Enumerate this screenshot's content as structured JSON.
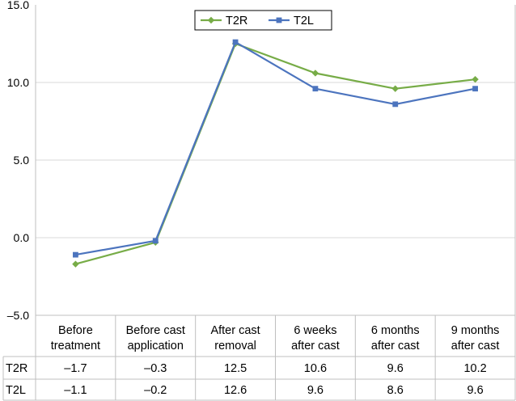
{
  "chart_data": {
    "type": "line",
    "title": "",
    "xlabel": "",
    "ylabel": "",
    "ylim": [
      -5,
      15
    ],
    "yticks": [
      "15.0",
      "10.0",
      "5.0",
      "0.0",
      "–5.0"
    ],
    "ytick_values": [
      15,
      10,
      5,
      0,
      -5
    ],
    "grid": true,
    "legend_position": "top-center",
    "categories": [
      [
        "Before",
        "treatment"
      ],
      [
        "Before cast",
        "application"
      ],
      [
        "After cast",
        "removal"
      ],
      [
        "6 weeks",
        "after cast"
      ],
      [
        "6 months",
        "after cast"
      ],
      [
        "9 months",
        "after cast"
      ]
    ],
    "series": [
      {
        "name": "T2R",
        "color": "#77AC47",
        "marker": "diamond",
        "values": [
          -1.7,
          -0.3,
          12.5,
          10.6,
          9.6,
          10.2
        ],
        "table_labels": [
          "–1.7",
          "–0.3",
          "12.5",
          "10.6",
          "9.6",
          "10.2"
        ]
      },
      {
        "name": "T2L",
        "color": "#4C74BE",
        "marker": "square",
        "values": [
          -1.1,
          -0.2,
          12.6,
          9.6,
          8.6,
          9.6
        ],
        "table_labels": [
          "–1.1",
          "–0.2",
          "12.6",
          "9.6",
          "8.6",
          "9.6"
        ]
      }
    ]
  }
}
